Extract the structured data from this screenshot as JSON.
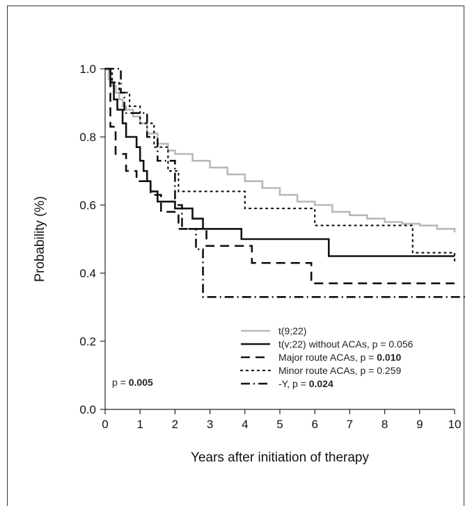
{
  "chart_data": {
    "type": "line",
    "step": true,
    "title": "",
    "xlabel": "Years after initiation of therapy",
    "ylabel": "Probability (%)",
    "xlim": [
      0,
      10
    ],
    "ylim": [
      0.0,
      1.0
    ],
    "x_ticks": [
      "0",
      "1",
      "2",
      "3",
      "4",
      "5",
      "6",
      "7",
      "8",
      "9",
      "10"
    ],
    "y_ticks": [
      "0.0",
      "0.2",
      "0.4",
      "0.6",
      "0.8",
      "1.0"
    ],
    "grid": false,
    "legend_position": "bottom-right",
    "annotation": {
      "prefix": "p = ",
      "value": "0.005"
    },
    "series": [
      {
        "name": "t(9;22)",
        "legend_prefix": "t(9;22)",
        "legend_value": "",
        "value_bold": false,
        "color": "#b8b8b8",
        "style": "solid",
        "x": [
          0,
          0.1,
          0.2,
          0.3,
          0.4,
          0.5,
          0.6,
          0.8,
          1.0,
          1.2,
          1.5,
          1.8,
          2.0,
          2.5,
          3.0,
          3.5,
          4.0,
          4.5,
          5.0,
          5.5,
          6.0,
          6.5,
          7.0,
          7.5,
          8.0,
          8.5,
          9.0,
          9.5,
          10.0
        ],
        "y": [
          1.0,
          0.97,
          0.95,
          0.93,
          0.91,
          0.89,
          0.88,
          0.86,
          0.84,
          0.81,
          0.78,
          0.76,
          0.75,
          0.73,
          0.71,
          0.69,
          0.67,
          0.65,
          0.63,
          0.61,
          0.6,
          0.58,
          0.57,
          0.56,
          0.55,
          0.545,
          0.54,
          0.53,
          0.52
        ]
      },
      {
        "name": "t(v;22) without ACAs",
        "legend_prefix": "t(v;22) without ACAs, p = ",
        "legend_value": "0.056",
        "value_bold": false,
        "color": "#111111",
        "style": "solid",
        "x": [
          0,
          0.15,
          0.25,
          0.35,
          0.5,
          0.6,
          0.9,
          1.0,
          1.1,
          1.2,
          1.3,
          1.5,
          2.0,
          2.5,
          2.8,
          3.9,
          6.4,
          10.0
        ],
        "y": [
          1.0,
          0.96,
          0.91,
          0.88,
          0.84,
          0.8,
          0.77,
          0.73,
          0.7,
          0.67,
          0.64,
          0.61,
          0.59,
          0.56,
          0.53,
          0.5,
          0.45,
          0.45
        ]
      },
      {
        "name": "Major route ACAs",
        "legend_prefix": "Major route ACAs, p = ",
        "legend_value": "0.010",
        "value_bold": true,
        "color": "#111111",
        "style": "dashed",
        "x": [
          0,
          0.15,
          0.3,
          0.6,
          0.9,
          1.3,
          1.6,
          2.1,
          2.9,
          4.2,
          5.9,
          10.0
        ],
        "y": [
          1.0,
          0.83,
          0.75,
          0.7,
          0.67,
          0.63,
          0.58,
          0.53,
          0.48,
          0.43,
          0.37,
          0.37
        ]
      },
      {
        "name": "Minor route ACAs",
        "legend_prefix": "Minor route ACAs, p = ",
        "legend_value": "0.259",
        "value_bold": false,
        "color": "#111111",
        "style": "dotted",
        "x": [
          0,
          0.2,
          0.4,
          0.7,
          1.0,
          1.4,
          1.8,
          2.1,
          4.0,
          6.0,
          8.8,
          10.0
        ],
        "y": [
          1.0,
          0.96,
          0.93,
          0.89,
          0.84,
          0.77,
          0.7,
          0.64,
          0.59,
          0.54,
          0.46,
          0.43
        ]
      },
      {
        "name": "-Y",
        "legend_prefix": "-Y, p = ",
        "legend_value": "0.024",
        "value_bold": true,
        "color": "#111111",
        "style": "dashdot",
        "x": [
          0,
          0.45,
          0.55,
          1.2,
          1.5,
          2.0,
          2.2,
          2.6,
          2.8,
          10.5
        ],
        "y": [
          1.0,
          0.93,
          0.87,
          0.8,
          0.73,
          0.6,
          0.53,
          0.47,
          0.33,
          0.33
        ]
      }
    ]
  }
}
